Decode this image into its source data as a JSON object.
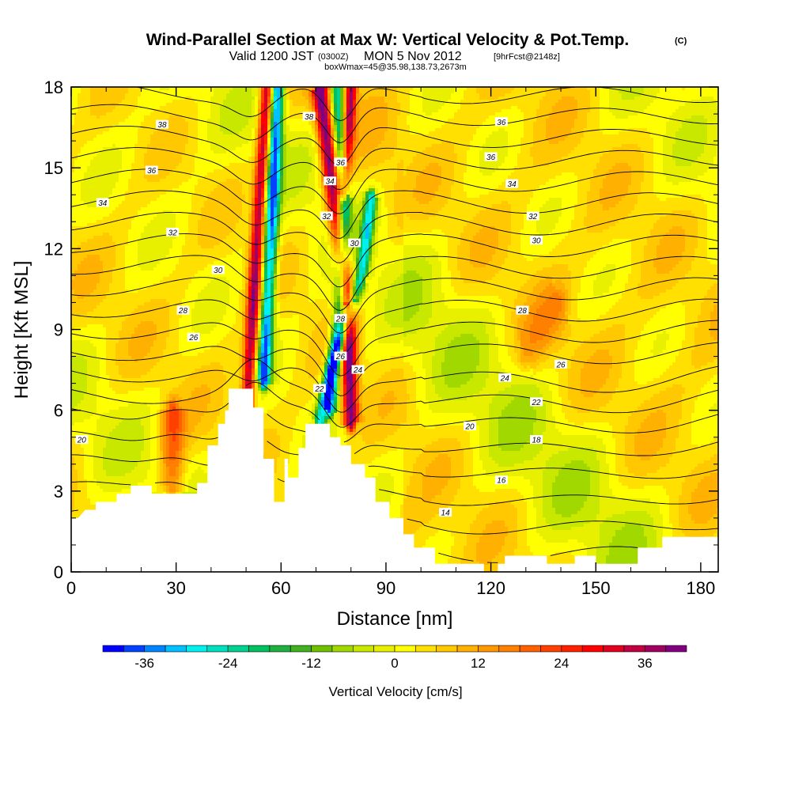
{
  "title": {
    "main": "Wind-Parallel Section at Max W: Vertical Velocity & Pot.Temp.",
    "copyright": "(C)",
    "valid_prefix": "Valid 1200 JST",
    "valid_z": "(0300Z)",
    "valid_date": "MON 5 Nov 2012",
    "forecast": "[9hrFcst@2148z]",
    "box": "boxWmax=45@35.98,138.73,2673m"
  },
  "chart_data": {
    "type": "heatmap",
    "xlabel": "Distance [nm]",
    "ylabel": "Height [Kft MSL]",
    "xlim": [
      0,
      185
    ],
    "ylim": [
      0,
      18
    ],
    "xticks": [
      0,
      30,
      60,
      90,
      120,
      150,
      180
    ],
    "yticks": [
      0,
      3,
      6,
      9,
      12,
      15,
      18
    ],
    "xtick_labels": [
      "0",
      "30",
      "60",
      "90",
      "120",
      "150",
      "180"
    ],
    "ytick_labels": [
      "0",
      "3",
      "6",
      "9",
      "12",
      "15",
      "18"
    ],
    "colorbar": {
      "label": "Vertical Velocity [cm/s]",
      "levels": [
        -42,
        -39,
        -36,
        -33,
        -30,
        -27,
        -24,
        -21,
        -18,
        -15,
        -12,
        -9,
        -6,
        -3,
        0,
        3,
        6,
        9,
        12,
        15,
        18,
        21,
        24,
        27,
        30,
        33,
        36,
        39,
        42
      ],
      "colors": [
        "#0000ff",
        "#0042ff",
        "#0084ff",
        "#00c0ff",
        "#00f0f0",
        "#00e0c0",
        "#00d090",
        "#00c060",
        "#20b040",
        "#40b020",
        "#70c000",
        "#a0d800",
        "#c8e800",
        "#e8f000",
        "#ffff00",
        "#ffe000",
        "#ffc800",
        "#ffb000",
        "#ff9800",
        "#ff8000",
        "#ff6000",
        "#ff4000",
        "#ff2000",
        "#ff0000",
        "#e00020",
        "#c00040",
        "#a00060",
        "#800080"
      ],
      "tick_values": [
        -36,
        -24,
        -12,
        0,
        12,
        24,
        36
      ],
      "tick_labels": [
        "-36",
        "-24",
        "-12",
        "0",
        "12",
        "24",
        "36"
      ]
    },
    "terrain": [
      [
        0,
        2.0
      ],
      [
        2,
        2.0
      ],
      [
        4,
        2.3
      ],
      [
        7,
        2.3
      ],
      [
        7,
        2.6
      ],
      [
        13,
        2.6
      ],
      [
        13,
        2.9
      ],
      [
        17,
        2.9
      ],
      [
        17,
        3.2
      ],
      [
        23,
        3.2
      ],
      [
        23,
        2.9
      ],
      [
        36,
        2.9
      ],
      [
        36,
        3.3
      ],
      [
        39,
        3.3
      ],
      [
        39,
        4.7
      ],
      [
        42,
        4.7
      ],
      [
        42,
        5.5
      ],
      [
        44,
        5.5
      ],
      [
        44,
        6.0
      ],
      [
        45,
        6.0
      ],
      [
        45,
        6.8
      ],
      [
        52,
        6.8
      ],
      [
        52,
        6.1
      ],
      [
        55,
        6.1
      ],
      [
        55,
        4.2
      ],
      [
        58,
        4.2
      ],
      [
        58,
        2.6
      ],
      [
        61,
        2.6
      ],
      [
        61,
        4.2
      ],
      [
        62,
        4.2
      ],
      [
        62,
        3.5
      ],
      [
        65,
        3.5
      ],
      [
        65,
        4.6
      ],
      [
        67,
        4.6
      ],
      [
        67,
        5.5
      ],
      [
        74,
        5.5
      ],
      [
        74,
        5.0
      ],
      [
        77,
        5.0
      ],
      [
        77,
        4.7
      ],
      [
        80,
        4.7
      ],
      [
        80,
        4.0
      ],
      [
        84,
        4.0
      ],
      [
        84,
        3.5
      ],
      [
        87,
        3.5
      ],
      [
        87,
        2.6
      ],
      [
        91,
        2.6
      ],
      [
        91,
        2.0
      ],
      [
        95,
        2.0
      ],
      [
        95,
        1.4
      ],
      [
        98,
        1.4
      ],
      [
        98,
        0.9
      ],
      [
        104,
        0.9
      ],
      [
        104,
        0.3
      ],
      [
        118,
        0.3
      ],
      [
        118,
        0.0
      ],
      [
        122,
        0.0
      ],
      [
        122,
        0.3
      ],
      [
        124,
        0.3
      ],
      [
        124,
        0.6
      ],
      [
        136,
        0.6
      ],
      [
        136,
        0.3
      ],
      [
        144,
        0.3
      ],
      [
        144,
        0.6
      ],
      [
        150,
        0.6
      ],
      [
        150,
        0.3
      ],
      [
        162,
        0.3
      ],
      [
        162,
        0.9
      ],
      [
        169,
        0.9
      ],
      [
        169,
        1.3
      ],
      [
        185,
        1.3
      ]
    ],
    "velocity_features": [
      {
        "name": "updraft-west-flank",
        "axis": [
          [
            50,
            5.5
          ],
          [
            53,
            12
          ],
          [
            56,
            18
          ]
        ],
        "width": 1.3,
        "amplitude": 34
      },
      {
        "name": "downdraft-west",
        "axis": [
          [
            55,
            7
          ],
          [
            57,
            12
          ],
          [
            59,
            18
          ]
        ],
        "width": 1.4,
        "amplitude": -38
      },
      {
        "name": "updraft-central",
        "axis": [
          [
            80,
            5.5
          ],
          [
            79,
            10
          ],
          [
            75,
            14
          ],
          [
            71,
            18
          ]
        ],
        "width": 1.6,
        "amplitude": 38
      },
      {
        "name": "downdraft-central",
        "axis": [
          [
            74,
            6
          ],
          [
            77,
            10
          ],
          [
            78,
            14
          ],
          [
            76,
            18
          ]
        ],
        "width": 1.4,
        "amplitude": -30
      },
      {
        "name": "downdraft-lee",
        "axis": [
          [
            71,
            5.5
          ],
          [
            74,
            7.5
          ],
          [
            83,
            11
          ],
          [
            86,
            14
          ]
        ],
        "width": 1.2,
        "amplitude": -28
      },
      {
        "name": "updraft-upper-right",
        "axis": [
          [
            78,
            14
          ],
          [
            80,
            18
          ]
        ],
        "width": 1.2,
        "amplitude": 32
      },
      {
        "name": "updraft-low-west",
        "axis": [
          [
            29,
            3
          ],
          [
            29,
            6
          ]
        ],
        "width": 2.5,
        "amplitude": 16
      },
      {
        "name": "updraft-mid-east",
        "axis": [
          [
            130,
            8
          ],
          [
            140,
            10
          ]
        ],
        "width": 3,
        "amplitude": 8
      }
    ],
    "theta_isentropes": {
      "base_heights": [
        1.0,
        2.0,
        3.0,
        4.0,
        4.9,
        5.8,
        6.6,
        7.4,
        8.2,
        9.0,
        9.8,
        10.6,
        11.4,
        12.2,
        13.0,
        13.8,
        14.6,
        15.4,
        16.2,
        17.0,
        17.8
      ],
      "labels": [
        {
          "text": "14",
          "x": 107,
          "y": 2.2
        },
        {
          "text": "16",
          "x": 123,
          "y": 3.4
        },
        {
          "text": "18",
          "x": 133,
          "y": 4.9
        },
        {
          "text": "20",
          "x": 3,
          "y": 4.9
        },
        {
          "text": "20",
          "x": 114,
          "y": 5.4
        },
        {
          "text": "22",
          "x": 71,
          "y": 6.8
        },
        {
          "text": "22",
          "x": 133,
          "y": 6.3
        },
        {
          "text": "24",
          "x": 82,
          "y": 7.5
        },
        {
          "text": "24",
          "x": 124,
          "y": 7.2
        },
        {
          "text": "26",
          "x": 35,
          "y": 8.7
        },
        {
          "text": "26",
          "x": 77,
          "y": 8.0
        },
        {
          "text": "26",
          "x": 140,
          "y": 7.7
        },
        {
          "text": "28",
          "x": 32,
          "y": 9.7
        },
        {
          "text": "28",
          "x": 77,
          "y": 9.4
        },
        {
          "text": "28",
          "x": 129,
          "y": 9.7
        },
        {
          "text": "30",
          "x": 42,
          "y": 11.2
        },
        {
          "text": "30",
          "x": 81,
          "y": 12.2
        },
        {
          "text": "30",
          "x": 133,
          "y": 12.3
        },
        {
          "text": "32",
          "x": 29,
          "y": 12.6
        },
        {
          "text": "32",
          "x": 73,
          "y": 13.2
        },
        {
          "text": "32",
          "x": 132,
          "y": 13.2
        },
        {
          "text": "34",
          "x": 9,
          "y": 13.7
        },
        {
          "text": "34",
          "x": 74,
          "y": 14.5
        },
        {
          "text": "34",
          "x": 126,
          "y": 14.4
        },
        {
          "text": "36",
          "x": 23,
          "y": 14.9
        },
        {
          "text": "36",
          "x": 77,
          "y": 15.2
        },
        {
          "text": "36",
          "x": 120,
          "y": 15.4
        },
        {
          "text": "36",
          "x": 123,
          "y": 16.7
        },
        {
          "text": "38",
          "x": 26,
          "y": 16.6
        },
        {
          "text": "38",
          "x": 68,
          "y": 16.9
        }
      ]
    },
    "grid": false,
    "legend": "bottom"
  }
}
